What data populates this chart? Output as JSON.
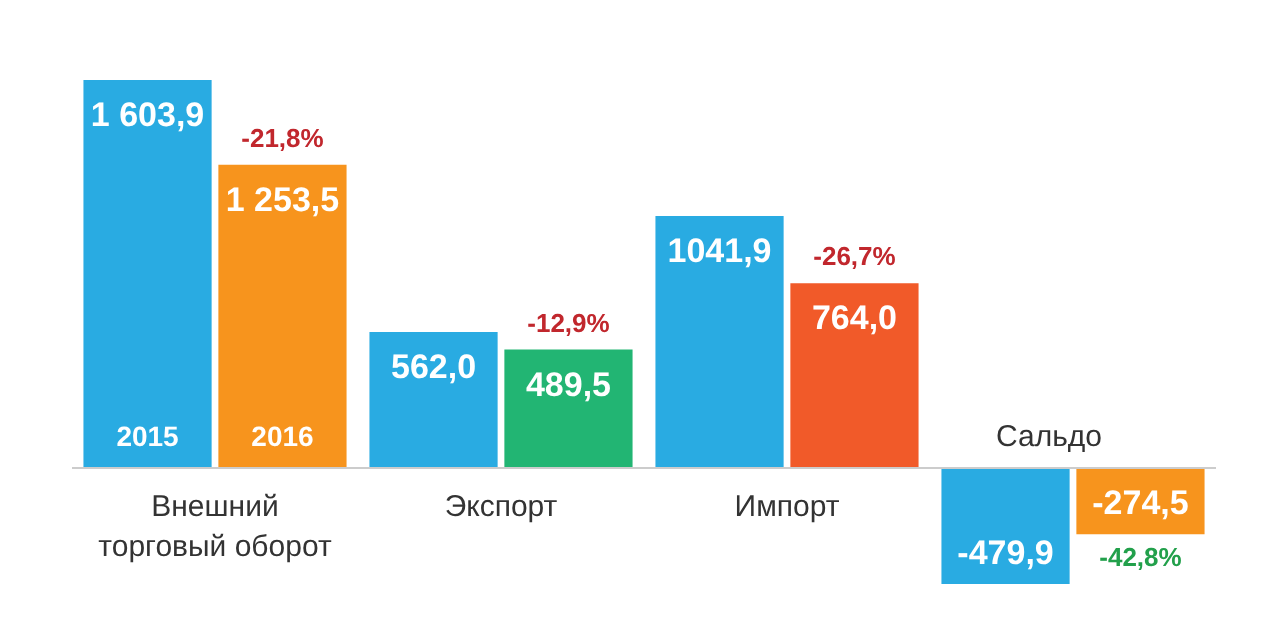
{
  "chart_data": {
    "type": "bar",
    "categories": [
      "Внешний торговый оборот",
      "Экспорт",
      "Импорт",
      "Сальдо"
    ],
    "series": [
      {
        "name": "2015",
        "color": "#29abe2",
        "values": [
          1603.9,
          562.0,
          1041.9,
          -479.9
        ],
        "value_labels": [
          "1 603,9",
          "562,0",
          "1041,9",
          "-479,9"
        ]
      },
      {
        "name": "2016",
        "color": "#f7941d",
        "colors": [
          null,
          "#22b573",
          "#f15a29",
          null
        ],
        "values": [
          1253.5,
          489.5,
          764.0,
          -274.5
        ],
        "value_labels": [
          "1 253,5",
          "489,5",
          "764,0",
          "-274,5"
        ]
      }
    ],
    "annotations": [
      {
        "text": "-21,8%",
        "x": "Внешний торговый оборот",
        "y": 1253.5
      },
      {
        "text": "-12,9%",
        "x": "Экспорт",
        "y": 489.5
      },
      {
        "text": "-26,7%",
        "x": "Импорт",
        "y": 764.0
      },
      {
        "text": "-42,8%",
        "x": "Сальдо",
        "y": -274.5
      }
    ]
  }
}
